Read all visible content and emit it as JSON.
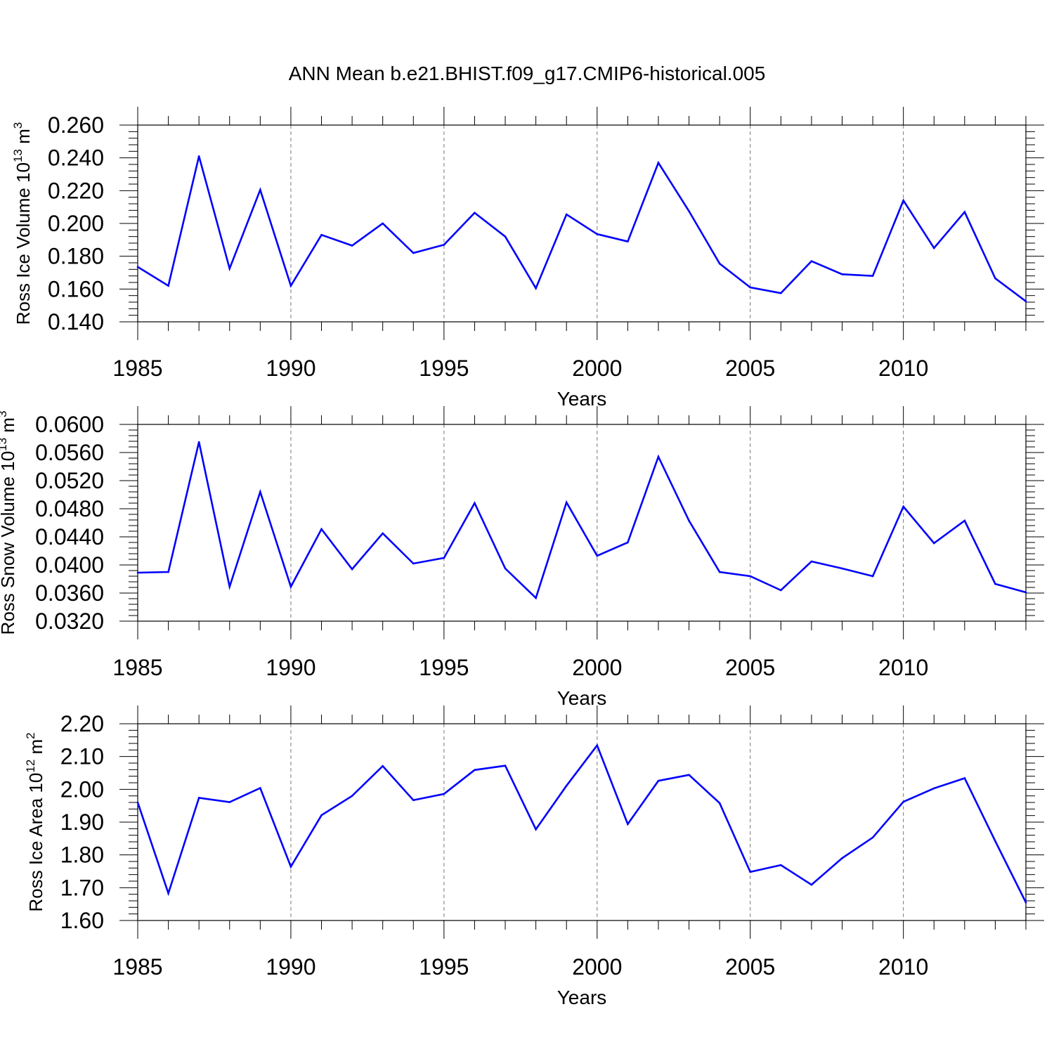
{
  "title": "ANN Mean b.e21.BHIST.f09_g17.CMIP6-historical.005",
  "line_color": "#0000ff",
  "chart_data": [
    {
      "type": "line",
      "ylabel_main": "Ross Ice Volume 10",
      "ylabel_exp": "13",
      "ylabel_unit": " m",
      "ylabel_unit_exp": "3",
      "xlabel": "Years",
      "xlim": [
        1985,
        2014
      ],
      "ylim": [
        0.14,
        0.26
      ],
      "yticks": [
        0.14,
        0.16,
        0.18,
        0.2,
        0.22,
        0.24,
        0.26
      ],
      "ytick_labels": [
        "0.140",
        "0.160",
        "0.180",
        "0.200",
        "0.220",
        "0.240",
        "0.260"
      ],
      "xticks": [
        1985,
        1990,
        1995,
        2000,
        2005,
        2010
      ],
      "xtick_labels": [
        "1985",
        "1990",
        "1995",
        "2000",
        "2005",
        "2010"
      ],
      "x": [
        1985,
        1986,
        1987,
        1988,
        1989,
        1990,
        1991,
        1992,
        1993,
        1994,
        1995,
        1996,
        1997,
        1998,
        1999,
        2000,
        2001,
        2002,
        2003,
        2004,
        2005,
        2006,
        2007,
        2008,
        2009,
        2010,
        2011,
        2012,
        2013,
        2014
      ],
      "values": [
        0.1735,
        0.162,
        0.241,
        0.1725,
        0.2205,
        0.162,
        0.193,
        0.1865,
        0.2,
        0.182,
        0.187,
        0.2065,
        0.192,
        0.1605,
        0.2055,
        0.1935,
        0.189,
        0.237,
        0.2075,
        0.1755,
        0.161,
        0.1575,
        0.177,
        0.169,
        0.168,
        0.214,
        0.185,
        0.207,
        0.1665,
        0.1525
      ]
    },
    {
      "type": "line",
      "ylabel_main": "Ross Snow Volume 10",
      "ylabel_exp": "13",
      "ylabel_unit": " m",
      "ylabel_unit_exp": "3",
      "xlabel": "Years",
      "xlim": [
        1985,
        2014
      ],
      "ylim": [
        0.032,
        0.06
      ],
      "yticks": [
        0.032,
        0.036,
        0.04,
        0.044,
        0.048,
        0.052,
        0.056,
        0.06
      ],
      "ytick_labels": [
        "0.0320",
        "0.0360",
        "0.0400",
        "0.0440",
        "0.0480",
        "0.0520",
        "0.0560",
        "0.0600"
      ],
      "xticks": [
        1985,
        1990,
        1995,
        2000,
        2005,
        2010
      ],
      "xtick_labels": [
        "1985",
        "1990",
        "1995",
        "2000",
        "2005",
        "2010"
      ],
      "x": [
        1985,
        1986,
        1987,
        1988,
        1989,
        1990,
        1991,
        1992,
        1993,
        1994,
        1995,
        1996,
        1997,
        1998,
        1999,
        2000,
        2001,
        2002,
        2003,
        2004,
        2005,
        2006,
        2007,
        2008,
        2009,
        2010,
        2011,
        2012,
        2013,
        2014
      ],
      "values": [
        0.0389,
        0.039,
        0.0575,
        0.0369,
        0.0504,
        0.0369,
        0.0451,
        0.0394,
        0.0445,
        0.0402,
        0.041,
        0.0488,
        0.0395,
        0.0353,
        0.0489,
        0.0413,
        0.0432,
        0.0554,
        0.0463,
        0.039,
        0.0384,
        0.0364,
        0.0405,
        0.0395,
        0.0384,
        0.0483,
        0.0431,
        0.0463,
        0.0373,
        0.0361
      ]
    },
    {
      "type": "line",
      "ylabel_main": "Ross Ice Area 10",
      "ylabel_exp": "12",
      "ylabel_unit": " m",
      "ylabel_unit_exp": "2",
      "xlabel": "Years",
      "xlim": [
        1985,
        2014
      ],
      "ylim": [
        1.6,
        2.2
      ],
      "yticks": [
        1.6,
        1.7,
        1.8,
        1.9,
        2.0,
        2.1,
        2.2
      ],
      "ytick_labels": [
        "1.60",
        "1.70",
        "1.80",
        "1.90",
        "2.00",
        "2.10",
        "2.20"
      ],
      "xticks": [
        1985,
        1990,
        1995,
        2000,
        2005,
        2010
      ],
      "xtick_labels": [
        "1985",
        "1990",
        "1995",
        "2000",
        "2005",
        "2010"
      ],
      "x": [
        1985,
        1986,
        1987,
        1988,
        1989,
        1990,
        1991,
        1992,
        1993,
        1994,
        1995,
        1996,
        1997,
        1998,
        1999,
        2000,
        2001,
        2002,
        2003,
        2004,
        2005,
        2006,
        2007,
        2008,
        2009,
        2010,
        2011,
        2012,
        2013,
        2014
      ],
      "values": [
        1.96,
        1.683,
        1.974,
        1.961,
        2.004,
        1.764,
        1.921,
        1.98,
        2.071,
        1.967,
        1.986,
        2.059,
        2.072,
        1.878,
        2.011,
        2.134,
        1.894,
        2.026,
        2.044,
        1.958,
        1.748,
        1.769,
        1.709,
        1.79,
        1.853,
        1.962,
        2.003,
        2.034,
        1.842,
        1.655
      ]
    }
  ]
}
